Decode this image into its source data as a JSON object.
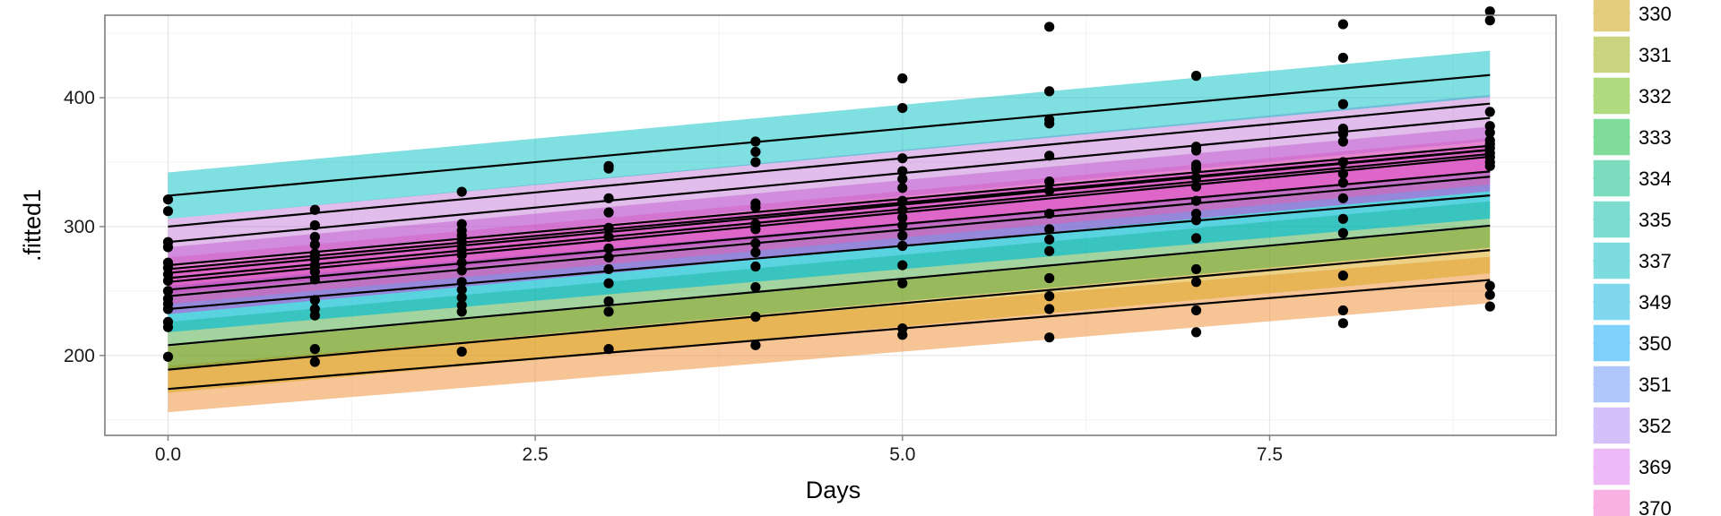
{
  "chart_data": {
    "type": "line",
    "xlabel": "Days",
    "ylabel": ".fitted1",
    "xlim": [
      -0.43,
      9.45
    ],
    "ylim": [
      138,
      464
    ],
    "x_ticks": [
      0.0,
      2.5,
      5.0,
      7.5
    ],
    "x_tick_labels": [
      "0.0",
      "2.5",
      "5.0",
      "7.5"
    ],
    "y_ticks": [
      200,
      300,
      400
    ],
    "y_tick_labels": [
      "200",
      "300",
      "400"
    ],
    "grid": true,
    "legend_position": "right",
    "groups": [
      {
        "name": "330",
        "color": "#E2CC7E",
        "band_width": 18
      },
      {
        "name": "331",
        "color": "#C9D47E",
        "band_width": 18
      },
      {
        "name": "332",
        "color": "#AFDA7E",
        "band_width": 18
      },
      {
        "name": "333",
        "color": "#7FDC99",
        "band_width": 18
      },
      {
        "name": "334",
        "color": "#7BDDBE",
        "band_width": 18
      },
      {
        "name": "335",
        "color": "#7CDCCF",
        "band_width": 18
      },
      {
        "name": "337",
        "color": "#7DDCDD",
        "band_width": 18
      },
      {
        "name": "349",
        "color": "#7FD8EE",
        "band_width": 18
      },
      {
        "name": "350",
        "color": "#7FD1FB",
        "band_width": 18
      },
      {
        "name": "351",
        "color": "#AFC7FB",
        "band_width": 18
      },
      {
        "name": "352",
        "color": "#D4C1FB",
        "band_width": 18
      },
      {
        "name": "369",
        "color": "#EDB9F7",
        "band_width": 18
      },
      {
        "name": "370",
        "color": "#F9B0E2",
        "band_width": 18
      }
    ],
    "bands": [
      {
        "color": "#EE8A2B",
        "opacity": 0.5,
        "intercept": 174,
        "slope": 9.4,
        "half_width": 18
      },
      {
        "color": "#DDAA22",
        "opacity": 0.55,
        "intercept": 189,
        "slope": 10.3,
        "half_width": 18
      },
      {
        "color": "#33A02C",
        "opacity": 0.45,
        "intercept": 208,
        "slope": 10.4,
        "half_width": 18
      },
      {
        "color": "#00BCD0",
        "opacity": 0.65,
        "intercept": 236,
        "slope": 9.8,
        "half_width": 18
      },
      {
        "color": "#D23BD2",
        "opacity": 0.5,
        "intercept": 250,
        "slope": 10.6,
        "half_width": 18
      },
      {
        "color": "#FF4FA1",
        "opacity": 0.4,
        "intercept": 258,
        "slope": 10.3,
        "half_width": 18
      },
      {
        "color": "#C74AC7",
        "opacity": 0.45,
        "intercept": 266,
        "slope": 10.4,
        "half_width": 18
      },
      {
        "color": "#B35BD0",
        "opacity": 0.4,
        "intercept": 288,
        "slope": 10.7,
        "half_width": 18
      },
      {
        "color": "#00BFC4",
        "opacity": 0.5,
        "intercept": 324,
        "slope": 10.5,
        "half_width": 18
      }
    ],
    "fitted_lines": [
      {
        "intercept": 174,
        "slope": 9.4
      },
      {
        "intercept": 189,
        "slope": 10.3
      },
      {
        "intercept": 208,
        "slope": 10.3
      },
      {
        "intercept": 236,
        "slope": 9.8
      },
      {
        "intercept": 246,
        "slope": 10.3
      },
      {
        "intercept": 251,
        "slope": 10.2
      },
      {
        "intercept": 257,
        "slope": 10.8
      },
      {
        "intercept": 260,
        "slope": 10.7
      },
      {
        "intercept": 264,
        "slope": 10.6
      },
      {
        "intercept": 267,
        "slope": 10.3
      },
      {
        "intercept": 270,
        "slope": 10.3
      },
      {
        "intercept": 288,
        "slope": 10.7
      },
      {
        "intercept": 300,
        "slope": 10.6
      },
      {
        "intercept": 324,
        "slope": 10.4
      }
    ],
    "points": [
      [
        0,
        321
      ],
      [
        0,
        312
      ],
      [
        0,
        288
      ],
      [
        0,
        284
      ],
      [
        0,
        272
      ],
      [
        0,
        268
      ],
      [
        0,
        263
      ],
      [
        0,
        258
      ],
      [
        0,
        250
      ],
      [
        0,
        244
      ],
      [
        0,
        240
      ],
      [
        0,
        236
      ],
      [
        0,
        226
      ],
      [
        0,
        222
      ],
      [
        0,
        199
      ],
      [
        1,
        313
      ],
      [
        1,
        301
      ],
      [
        1,
        292
      ],
      [
        1,
        286
      ],
      [
        1,
        279
      ],
      [
        1,
        275
      ],
      [
        1,
        270
      ],
      [
        1,
        265
      ],
      [
        1,
        259
      ],
      [
        1,
        243
      ],
      [
        1,
        236
      ],
      [
        1,
        231
      ],
      [
        1,
        205
      ],
      [
        1,
        195
      ],
      [
        2,
        327
      ],
      [
        2,
        302
      ],
      [
        2,
        297
      ],
      [
        2,
        293
      ],
      [
        2,
        288
      ],
      [
        2,
        282
      ],
      [
        2,
        278
      ],
      [
        2,
        272
      ],
      [
        2,
        266
      ],
      [
        2,
        257
      ],
      [
        2,
        251
      ],
      [
        2,
        245
      ],
      [
        2,
        239
      ],
      [
        2,
        234
      ],
      [
        2,
        203
      ],
      [
        3,
        347
      ],
      [
        3,
        345
      ],
      [
        3,
        322
      ],
      [
        3,
        311
      ],
      [
        3,
        299
      ],
      [
        3,
        292
      ],
      [
        3,
        283
      ],
      [
        3,
        276
      ],
      [
        3,
        267
      ],
      [
        3,
        256
      ],
      [
        3,
        242
      ],
      [
        3,
        234
      ],
      [
        3,
        205
      ],
      [
        4,
        366
      ],
      [
        4,
        358
      ],
      [
        4,
        350
      ],
      [
        4,
        318
      ],
      [
        4,
        315
      ],
      [
        4,
        302
      ],
      [
        4,
        298
      ],
      [
        4,
        287
      ],
      [
        4,
        280
      ],
      [
        4,
        269
      ],
      [
        4,
        253
      ],
      [
        4,
        230
      ],
      [
        4,
        208
      ],
      [
        5,
        415
      ],
      [
        5,
        392
      ],
      [
        5,
        353
      ],
      [
        5,
        343
      ],
      [
        5,
        337
      ],
      [
        5,
        330
      ],
      [
        5,
        320
      ],
      [
        5,
        313
      ],
      [
        5,
        307
      ],
      [
        5,
        301
      ],
      [
        5,
        293
      ],
      [
        5,
        285
      ],
      [
        5,
        270
      ],
      [
        5,
        256
      ],
      [
        5,
        221
      ],
      [
        5,
        216
      ],
      [
        6,
        455
      ],
      [
        6,
        405
      ],
      [
        6,
        383
      ],
      [
        6,
        380
      ],
      [
        6,
        355
      ],
      [
        6,
        335
      ],
      [
        6,
        328
      ],
      [
        6,
        310
      ],
      [
        6,
        298
      ],
      [
        6,
        290
      ],
      [
        6,
        281
      ],
      [
        6,
        260
      ],
      [
        6,
        246
      ],
      [
        6,
        236
      ],
      [
        6,
        214
      ],
      [
        7,
        417
      ],
      [
        7,
        362
      ],
      [
        7,
        359
      ],
      [
        7,
        348
      ],
      [
        7,
        345
      ],
      [
        7,
        338
      ],
      [
        7,
        331
      ],
      [
        7,
        320
      ],
      [
        7,
        310
      ],
      [
        7,
        305
      ],
      [
        7,
        291
      ],
      [
        7,
        267
      ],
      [
        7,
        257
      ],
      [
        7,
        235
      ],
      [
        7,
        218
      ],
      [
        8,
        457
      ],
      [
        8,
        431
      ],
      [
        8,
        395
      ],
      [
        8,
        376
      ],
      [
        8,
        372
      ],
      [
        8,
        366
      ],
      [
        8,
        350
      ],
      [
        8,
        341
      ],
      [
        8,
        334
      ],
      [
        8,
        322
      ],
      [
        8,
        306
      ],
      [
        8,
        295
      ],
      [
        8,
        262
      ],
      [
        8,
        235
      ],
      [
        8,
        225
      ],
      [
        9,
        467
      ],
      [
        9,
        460
      ],
      [
        9,
        389
      ],
      [
        9,
        378
      ],
      [
        9,
        373
      ],
      [
        9,
        367
      ],
      [
        9,
        364
      ],
      [
        9,
        361
      ],
      [
        9,
        357
      ],
      [
        9,
        354
      ],
      [
        9,
        350
      ],
      [
        9,
        347
      ],
      [
        9,
        254
      ],
      [
        9,
        247
      ],
      [
        9,
        238
      ]
    ]
  }
}
